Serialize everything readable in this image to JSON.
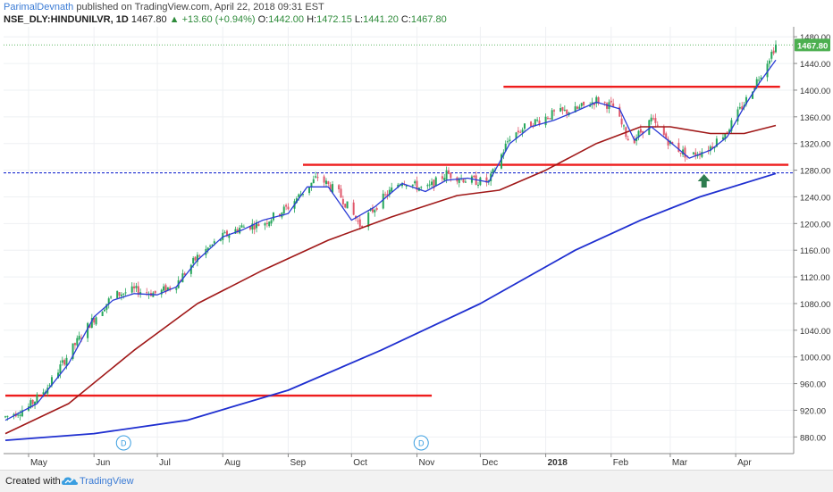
{
  "header": {
    "author": "ParimalDevnath",
    "published": "published on TradingView.com, April 22, 2018 09:31 EST",
    "symbol": "NSE_DLY:HINDUNILVR, 1D",
    "last": "1467.80",
    "change": "+13.60 (+0.94%)",
    "open_label": "O:",
    "open": "1442.00",
    "high_label": "H:",
    "high": "1472.15",
    "low_label": "L:",
    "low": "1441.20",
    "close_label": "C:",
    "close": "1467.80"
  },
  "footer": {
    "created_with": "Created with",
    "brand": "TradingView"
  },
  "colors": {
    "up": "#26a65b",
    "down": "#e0566a",
    "sma_short": "#2a3bd6",
    "sma_mid": "#a01818",
    "sma_long": "#1f2fd0",
    "support": "#ee1c1c",
    "price_label": "#4caf50"
  },
  "chart_data": {
    "type": "candlestick",
    "title": "",
    "price_label": "1467.80",
    "y_ticks": [
      "1480.00",
      "1440.00",
      "1400.00",
      "1360.00",
      "1320.00",
      "1280.00",
      "1240.00",
      "1200.00",
      "1160.00",
      "1120.00",
      "1080.00",
      "1040.00",
      "1000.00",
      "960.00",
      "920.00",
      "880.00"
    ],
    "ylim": [
      855,
      1495
    ],
    "x_tick_labels": [
      "May",
      "Jun",
      "Jul",
      "Aug",
      "Sep",
      "Oct",
      "Nov",
      "Dec",
      "2018",
      "Feb",
      "Mar",
      "Apr"
    ],
    "x_tick_dates": [
      "2017-05-01",
      "2017-06-01",
      "2017-07-01",
      "2017-08-01",
      "2017-09-01",
      "2017-10-01",
      "2017-11-01",
      "2017-12-01",
      "2018-01-01",
      "2018-02-01",
      "2018-03-01",
      "2018-04-01"
    ],
    "date_range": [
      "2017-04-20",
      "2018-04-20"
    ],
    "dividend_markers": [
      {
        "date": "2017-06-15",
        "label": "D"
      },
      {
        "date": "2017-11-03",
        "label": "D"
      }
    ],
    "close_path": [
      [
        "2017-04-20",
        910
      ],
      [
        "2017-05-01",
        925
      ],
      [
        "2017-05-10",
        955
      ],
      [
        "2017-05-20",
        1005
      ],
      [
        "2017-05-30",
        1050
      ],
      [
        "2017-06-10",
        1092
      ],
      [
        "2017-06-20",
        1100
      ],
      [
        "2017-07-01",
        1095
      ],
      [
        "2017-07-10",
        1110
      ],
      [
        "2017-07-20",
        1150
      ],
      [
        "2017-08-01",
        1180
      ],
      [
        "2017-08-10",
        1195
      ],
      [
        "2017-08-20",
        1200
      ],
      [
        "2017-09-01",
        1225
      ],
      [
        "2017-09-15",
        1270
      ],
      [
        "2017-09-25",
        1245
      ],
      [
        "2017-10-05",
        1198
      ],
      [
        "2017-10-15",
        1235
      ],
      [
        "2017-10-25",
        1265
      ],
      [
        "2017-11-05",
        1250
      ],
      [
        "2017-11-15",
        1275
      ],
      [
        "2017-11-25",
        1265
      ],
      [
        "2017-12-05",
        1262
      ],
      [
        "2017-12-15",
        1330
      ],
      [
        "2017-12-25",
        1350
      ],
      [
        "2018-01-05",
        1365
      ],
      [
        "2018-01-15",
        1370
      ],
      [
        "2018-01-25",
        1385
      ],
      [
        "2018-02-02",
        1375
      ],
      [
        "2018-02-10",
        1320
      ],
      [
        "2018-02-20",
        1355
      ],
      [
        "2018-03-01",
        1320
      ],
      [
        "2018-03-10",
        1300
      ],
      [
        "2018-03-20",
        1315
      ],
      [
        "2018-03-28",
        1340
      ],
      [
        "2018-04-05",
        1380
      ],
      [
        "2018-04-12",
        1420
      ],
      [
        "2018-04-20",
        1467.8
      ]
    ],
    "sma_short": [
      [
        "2017-04-20",
        905
      ],
      [
        "2017-05-05",
        930
      ],
      [
        "2017-05-20",
        990
      ],
      [
        "2017-06-01",
        1060
      ],
      [
        "2017-06-10",
        1085
      ],
      [
        "2017-06-20",
        1095
      ],
      [
        "2017-07-01",
        1093
      ],
      [
        "2017-07-10",
        1105
      ],
      [
        "2017-07-20",
        1145
      ],
      [
        "2017-08-01",
        1180
      ],
      [
        "2017-08-10",
        1190
      ],
      [
        "2017-08-20",
        1205
      ],
      [
        "2017-09-01",
        1215
      ],
      [
        "2017-09-10",
        1255
      ],
      [
        "2017-09-20",
        1255
      ],
      [
        "2017-10-01",
        1205
      ],
      [
        "2017-10-12",
        1225
      ],
      [
        "2017-10-25",
        1260
      ],
      [
        "2017-11-05",
        1248
      ],
      [
        "2017-11-15",
        1265
      ],
      [
        "2017-11-25",
        1268
      ],
      [
        "2017-12-05",
        1262
      ],
      [
        "2017-12-15",
        1320
      ],
      [
        "2017-12-25",
        1345
      ],
      [
        "2018-01-05",
        1355
      ],
      [
        "2018-01-15",
        1368
      ],
      [
        "2018-01-25",
        1382
      ],
      [
        "2018-02-05",
        1372
      ],
      [
        "2018-02-12",
        1325
      ],
      [
        "2018-02-20",
        1345
      ],
      [
        "2018-03-01",
        1322
      ],
      [
        "2018-03-10",
        1298
      ],
      [
        "2018-03-20",
        1310
      ],
      [
        "2018-03-28",
        1330
      ],
      [
        "2018-04-05",
        1375
      ],
      [
        "2018-04-12",
        1410
      ],
      [
        "2018-04-20",
        1445
      ]
    ],
    "sma_mid": [
      [
        "2017-04-20",
        885
      ],
      [
        "2017-05-20",
        930
      ],
      [
        "2017-06-20",
        1010
      ],
      [
        "2017-07-20",
        1080
      ],
      [
        "2017-08-20",
        1130
      ],
      [
        "2017-09-20",
        1175
      ],
      [
        "2017-10-20",
        1210
      ],
      [
        "2017-11-20",
        1242
      ],
      [
        "2017-12-10",
        1250
      ],
      [
        "2018-01-01",
        1280
      ],
      [
        "2018-01-25",
        1320
      ],
      [
        "2018-02-15",
        1345
      ],
      [
        "2018-03-01",
        1345
      ],
      [
        "2018-03-20",
        1335
      ],
      [
        "2018-04-05",
        1335
      ],
      [
        "2018-04-20",
        1347
      ]
    ],
    "sma_long": [
      [
        "2017-04-20",
        875
      ],
      [
        "2017-06-01",
        885
      ],
      [
        "2017-07-15",
        905
      ],
      [
        "2017-09-01",
        950
      ],
      [
        "2017-10-15",
        1010
      ],
      [
        "2017-12-01",
        1080
      ],
      [
        "2018-01-15",
        1160
      ],
      [
        "2018-02-15",
        1205
      ],
      [
        "2018-03-15",
        1240
      ],
      [
        "2018-04-20",
        1275
      ]
    ],
    "horizontal_lines": [
      {
        "from": "2017-04-20",
        "to": "2017-11-08",
        "value": 942
      },
      {
        "from": "2017-09-08",
        "to": "2018-04-26",
        "value": 1288
      },
      {
        "from": "2017-12-12",
        "to": "2018-04-22",
        "value": 1405
      }
    ],
    "dotted_level": 1276,
    "arrow": {
      "date": "2018-03-17",
      "value": 1258
    }
  }
}
